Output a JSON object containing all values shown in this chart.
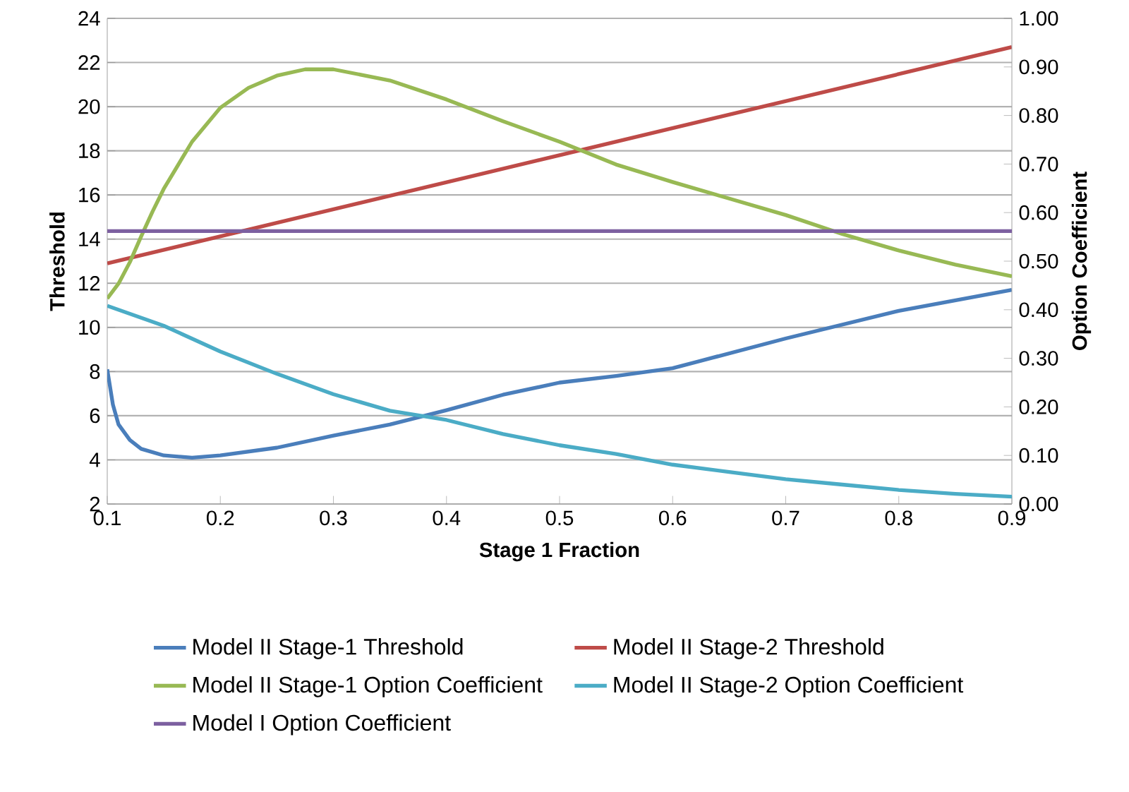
{
  "chart_data": {
    "type": "line",
    "xlabel": "Stage 1 Fraction",
    "ylabel": "Threshold",
    "y2label": "Option Coefficient",
    "xlim": [
      0.1,
      0.9
    ],
    "xticks": [
      0.1,
      0.2,
      0.3,
      0.4,
      0.5,
      0.6,
      0.7,
      0.8,
      0.9
    ],
    "ylim": [
      2,
      24
    ],
    "yticks": [
      2,
      4,
      6,
      8,
      10,
      12,
      14,
      16,
      18,
      20,
      22,
      24
    ],
    "y2lim": [
      0,
      1
    ],
    "y2ticks": [
      {
        "value": 0,
        "label": "0.00"
      },
      {
        "value": 0.1,
        "label": "0.10"
      },
      {
        "value": 0.2,
        "label": "0.20"
      },
      {
        "value": 0.3,
        "label": "0.30"
      },
      {
        "value": 0.4,
        "label": "0.40"
      },
      {
        "value": 0.5,
        "label": "0.50"
      },
      {
        "value": 0.6,
        "label": "0.60"
      },
      {
        "value": 0.7,
        "label": "0.70"
      },
      {
        "value": 0.8,
        "label": "0.80"
      },
      {
        "value": 0.9,
        "label": "0.90"
      },
      {
        "value": 1,
        "label": "1.00"
      }
    ],
    "grid": "y",
    "legend": "bottom",
    "marker": "none",
    "line_style": "solid",
    "series": [
      {
        "name": "Model II Stage-1 Threshold",
        "color": "#4a7ebb",
        "x": [
          0.1,
          0.105,
          0.11,
          0.12,
          0.13,
          0.15,
          0.175,
          0.2,
          0.25,
          0.3,
          0.35,
          0.4,
          0.45,
          0.5,
          0.55,
          0.6,
          0.7,
          0.8,
          0.9
        ],
        "values": [
          8.1,
          6.5,
          5.6,
          4.9,
          4.5,
          4.2,
          4.1,
          4.2,
          4.55,
          5.1,
          5.6,
          6.25,
          6.95,
          7.5,
          7.8,
          8.15,
          9.5,
          10.75,
          11.7
        ]
      },
      {
        "name": "Model II Stage-2 Threshold",
        "color": "#be4b48",
        "x": [
          0.1,
          0.5,
          0.9
        ],
        "values": [
          12.9,
          17.8,
          22.7
        ]
      },
      {
        "name": "Model II Stage-1 Option Coefficient",
        "color": "#98b954",
        "axis": "y2",
        "x": [
          0.1,
          0.11,
          0.12,
          0.13,
          0.14,
          0.15,
          0.175,
          0.2,
          0.225,
          0.25,
          0.275,
          0.3,
          0.35,
          0.4,
          0.45,
          0.5,
          0.55,
          0.6,
          0.65,
          0.7,
          0.75,
          0.8,
          0.85,
          0.9
        ],
        "values": [
          0.423,
          0.454,
          0.498,
          0.551,
          0.602,
          0.649,
          0.746,
          0.816,
          0.857,
          0.882,
          0.895,
          0.895,
          0.872,
          0.833,
          0.788,
          0.746,
          0.699,
          0.663,
          0.629,
          0.595,
          0.556,
          0.522,
          0.493,
          0.469
        ]
      },
      {
        "name": "Model II Stage-2 Option Coefficient",
        "color": "#4bacc6",
        "axis": "y2",
        "x": [
          0.1,
          0.15,
          0.2,
          0.25,
          0.3,
          0.35,
          0.4,
          0.45,
          0.5,
          0.55,
          0.6,
          0.65,
          0.7,
          0.75,
          0.8,
          0.85,
          0.9
        ],
        "values": [
          0.408,
          0.367,
          0.314,
          0.268,
          0.226,
          0.192,
          0.173,
          0.144,
          0.121,
          0.103,
          0.081,
          0.066,
          0.051,
          0.04,
          0.029,
          0.021,
          0.015
        ]
      },
      {
        "name": "Model I Option Coefficient",
        "color": "#7d60a0",
        "axis": "y2",
        "x": [
          0.1,
          0.9
        ],
        "values": [
          0.562,
          0.562
        ]
      }
    ]
  }
}
